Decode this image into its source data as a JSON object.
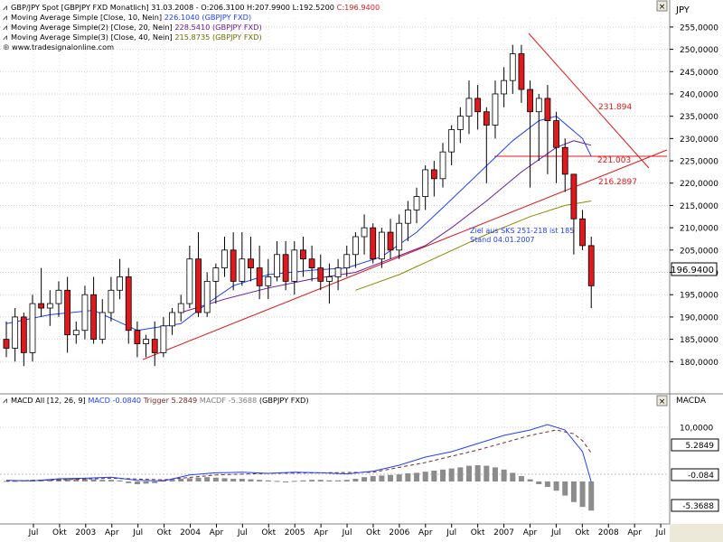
{
  "colors": {
    "up_candle": "#ffffff",
    "down_candle": "#e0191c",
    "candle_outline": "#000000",
    "ma1": "#1f3fff",
    "ma2": "#6a1aa0",
    "ma3": "#8a8a00",
    "trendline": "#e0191c",
    "macd_line": "#1f3fff",
    "trigger_line": "#7a2a2a",
    "histogram": "#8c8c8c"
  },
  "legend": [
    {
      "text": "GBP/JPY Spot [GBPJPY FXD  Monatlich] 31.03.2008 - O:206.3100 H:207.9900 L:192.5200 ",
      "extra": "C:196.9400",
      "color": "#000000"
    },
    {
      "text": "Moving Average Simple [Close, 10, Nein] ",
      "extra": "226.1040 (GBPJPY FXD)",
      "color": "#1f3fff"
    },
    {
      "text": "Moving Average Simple(2) [Close, 20, Nein] ",
      "extra": "228.5410 (GBPJPY FXD)",
      "color": "#6a1aa0"
    },
    {
      "text": "Moving Average Simple(3) [Close, 40, Nein] ",
      "extra": "215.8735 (GBPJPY FXD)",
      "color": "#8a8a00"
    }
  ],
  "watermark": "www.tradesignalonline.com",
  "main_axis_title": "JPY",
  "macd_axis_title": "MACDA",
  "macd_legend": {
    "prefix": "MACD All [12, 26, 9] ",
    "macd": "MACD -0.0840",
    "trigger": " Trigger 5.2849",
    "macdf": " MACDF -5.3688",
    "suffix": " (GBPJPY FXD)"
  },
  "price_badge": "196.9400",
  "macd_badges": [
    "5.2849",
    "-0.084",
    "-5.3688"
  ],
  "annotations": {
    "level_231": "231.894",
    "level_221": "221.003",
    "level_216": "216.2897",
    "note_line1": "Ziel aus SKS 251-218 ist 185",
    "note_line2": "Stand 04.01.2007"
  },
  "chart_data": {
    "type": "candlestick",
    "title": "GBP/JPY Spot [GBPJPY FXD Monatlich]",
    "ylim": [
      175,
      257
    ],
    "yticks": [
      "180,0000",
      "185,0000",
      "190,0000",
      "195,0000",
      "200,0000",
      "205,0000",
      "210,0000",
      "215,0000",
      "220,0000",
      "225,0000",
      "230,0000",
      "235,0000",
      "240,0000",
      "245,0000",
      "250,0000",
      "255,0000"
    ],
    "macd_ylim": [
      -7,
      13
    ],
    "macd_yticks": [
      "10,0000"
    ],
    "x_labels": [
      "Jul",
      "Okt",
      "2003",
      "Apr",
      "Jul",
      "Okt",
      "2004",
      "Apr",
      "Jul",
      "Okt",
      "2005",
      "Apr",
      "Jul",
      "Okt",
      "2006",
      "Apr",
      "Jul",
      "Okt",
      "2007",
      "Apr",
      "Jul",
      "Okt",
      "2008",
      "Apr",
      "Jul"
    ],
    "candles": [
      [
        185,
        189,
        181,
        183
      ],
      [
        183,
        192,
        180,
        190
      ],
      [
        190,
        191,
        179,
        182
      ],
      [
        182,
        195,
        180,
        193
      ],
      [
        193,
        201,
        190,
        192
      ],
      [
        192,
        196,
        188,
        193
      ],
      [
        193,
        198,
        190,
        196
      ],
      [
        196,
        199,
        182,
        186
      ],
      [
        186,
        189,
        184,
        187
      ],
      [
        187,
        197,
        185,
        195
      ],
      [
        195,
        199,
        184,
        185
      ],
      [
        185,
        194,
        184,
        191
      ],
      [
        191,
        199,
        189,
        196
      ],
      [
        196,
        203,
        194,
        199
      ],
      [
        199,
        201,
        184,
        187
      ],
      [
        187,
        189,
        181,
        184
      ],
      [
        184,
        186,
        181,
        185
      ],
      [
        185,
        189,
        179,
        182
      ],
      [
        182,
        190,
        181,
        188
      ],
      [
        188,
        192,
        186,
        191
      ],
      [
        191,
        195,
        189,
        193
      ],
      [
        193,
        206,
        192,
        203
      ],
      [
        203,
        209,
        190,
        191
      ],
      [
        191,
        200,
        190,
        198
      ],
      [
        198,
        202,
        193,
        201
      ],
      [
        201,
        208,
        199,
        205
      ],
      [
        205,
        209,
        196,
        198
      ],
      [
        198,
        209,
        197,
        203
      ],
      [
        203,
        208,
        198,
        201
      ],
      [
        201,
        206,
        194,
        197
      ],
      [
        197,
        203,
        194,
        199
      ],
      [
        199,
        207,
        198,
        204
      ],
      [
        204,
        207,
        196,
        198
      ],
      [
        198,
        207,
        195,
        205
      ],
      [
        205,
        208,
        199,
        203
      ],
      [
        203,
        206,
        198,
        201
      ],
      [
        201,
        204,
        196,
        198
      ],
      [
        198,
        202,
        193,
        199
      ],
      [
        199,
        203,
        196,
        201
      ],
      [
        201,
        206,
        199,
        204
      ],
      [
        204,
        209,
        201,
        208
      ],
      [
        208,
        213,
        204,
        210
      ],
      [
        210,
        211,
        202,
        203
      ],
      [
        203,
        210,
        201,
        209
      ],
      [
        209,
        212,
        203,
        205
      ],
      [
        205,
        213,
        203,
        211
      ],
      [
        211,
        216,
        207,
        214
      ],
      [
        214,
        219,
        211,
        217
      ],
      [
        217,
        224,
        214,
        223
      ],
      [
        223,
        225,
        217,
        221
      ],
      [
        221,
        229,
        219,
        227
      ],
      [
        227,
        233,
        224,
        232
      ],
      [
        232,
        237,
        229,
        235
      ],
      [
        235,
        243,
        231,
        239
      ],
      [
        239,
        242,
        232,
        236
      ],
      [
        236,
        237,
        220,
        233
      ],
      [
        233,
        243,
        230,
        240
      ],
      [
        240,
        246,
        237,
        243
      ],
      [
        243,
        251,
        240,
        249
      ],
      [
        249,
        251,
        238,
        241
      ],
      [
        241,
        243,
        219,
        236
      ],
      [
        236,
        240,
        225,
        239
      ],
      [
        239,
        242,
        222,
        234
      ],
      [
        234,
        236,
        220,
        228
      ],
      [
        228,
        230,
        218,
        222
      ],
      [
        222,
        222,
        204,
        212
      ],
      [
        212,
        214,
        205,
        206
      ],
      [
        206,
        208,
        192,
        197
      ]
    ],
    "ma10": [
      [
        0,
        188.5
      ],
      [
        5,
        190.5
      ],
      [
        10,
        191.5
      ],
      [
        15,
        187
      ],
      [
        20,
        188.5
      ],
      [
        23,
        193
      ],
      [
        26,
        197
      ],
      [
        30,
        199.5
      ],
      [
        35,
        200.5
      ],
      [
        39,
        201
      ],
      [
        43,
        203.5
      ],
      [
        47,
        209
      ],
      [
        50,
        214.5
      ],
      [
        54,
        222
      ],
      [
        58,
        229.5
      ],
      [
        61,
        234
      ],
      [
        63,
        235
      ],
      [
        66,
        230
      ],
      [
        67,
        226
      ]
    ],
    "ma20": [
      [
        20,
        191
      ],
      [
        25,
        194
      ],
      [
        30,
        196.5
      ],
      [
        35,
        198.5
      ],
      [
        40,
        200
      ],
      [
        44,
        203
      ],
      [
        48,
        206
      ],
      [
        51,
        210
      ],
      [
        55,
        216
      ],
      [
        59,
        222.5
      ],
      [
        63,
        228
      ],
      [
        65,
        229.5
      ],
      [
        67,
        228.5
      ]
    ],
    "ma40": [
      [
        40,
        196
      ],
      [
        45,
        199.5
      ],
      [
        50,
        204
      ],
      [
        55,
        208.5
      ],
      [
        60,
        212.5
      ],
      [
        64,
        215
      ],
      [
        67,
        216
      ]
    ],
    "macd": [
      [
        0,
        0.2
      ],
      [
        3,
        0.1
      ],
      [
        6,
        0.5
      ],
      [
        9,
        0.6
      ],
      [
        12,
        0.8
      ],
      [
        15,
        0.2
      ],
      [
        18,
        0.1
      ],
      [
        21,
        1.2
      ],
      [
        24,
        1.6
      ],
      [
        27,
        1.7
      ],
      [
        30,
        1.5
      ],
      [
        33,
        1.7
      ],
      [
        36,
        1.6
      ],
      [
        39,
        1.4
      ],
      [
        42,
        1.9
      ],
      [
        45,
        3.0
      ],
      [
        48,
        4.5
      ],
      [
        51,
        5.5
      ],
      [
        54,
        7.0
      ],
      [
        57,
        8.5
      ],
      [
        60,
        9.5
      ],
      [
        62,
        10.5
      ],
      [
        64,
        9.5
      ],
      [
        66,
        5.5
      ],
      [
        67,
        -0.08
      ]
    ],
    "trigger": [
      [
        0,
        0.1
      ],
      [
        6,
        0.3
      ],
      [
        12,
        0.6
      ],
      [
        18,
        0.3
      ],
      [
        24,
        1.2
      ],
      [
        30,
        1.5
      ],
      [
        36,
        1.6
      ],
      [
        42,
        1.7
      ],
      [
        48,
        3.5
      ],
      [
        54,
        5.8
      ],
      [
        60,
        8.5
      ],
      [
        63,
        9.5
      ],
      [
        65,
        8.8
      ],
      [
        66,
        7.5
      ],
      [
        67,
        5.28
      ]
    ],
    "histogram": [
      0.1,
      0.1,
      0.2,
      0.3,
      0.3,
      0.4,
      0.5,
      0.6,
      0.6,
      0.5,
      0.4,
      0.3,
      0.3,
      0.2,
      -0.3,
      -0.5,
      -0.4,
      -0.3,
      0.3,
      0.4,
      0.5,
      0.6,
      0.7,
      0.8,
      0.7,
      0.6,
      0.5,
      0.5,
      0.4,
      0.3,
      0.2,
      0.1,
      0.0,
      0.1,
      0.2,
      0.3,
      0.3,
      0.2,
      0.2,
      0.3,
      0.5,
      0.8,
      1.0,
      1.1,
      1.2,
      1.3,
      1.5,
      1.6,
      1.8,
      2.0,
      2.2,
      2.4,
      2.6,
      2.9,
      3.0,
      2.9,
      2.6,
      2.2,
      1.6,
      1.0,
      0.4,
      -0.5,
      -1.0,
      -1.7,
      -2.6,
      -3.8,
      -4.7,
      -5.37
    ]
  }
}
